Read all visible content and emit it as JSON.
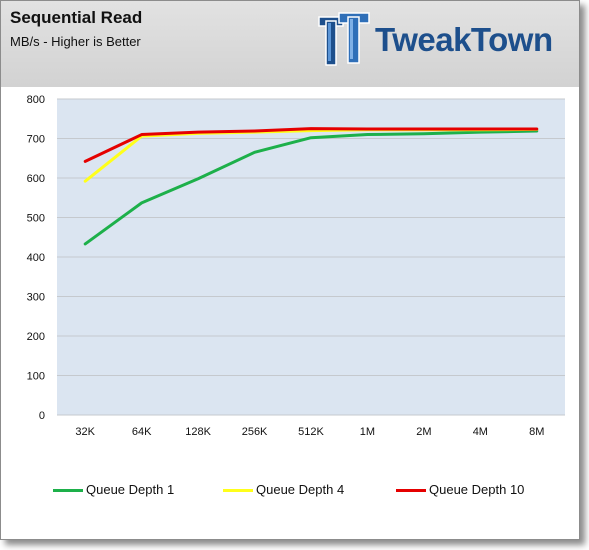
{
  "header": {
    "title": "Sequential Read",
    "subtitle": "MB/s - Higher is Better",
    "logo_text": "TweakTown"
  },
  "colors": {
    "plot_bg": "#dbe5f1",
    "grid": "#c5c9ce",
    "queue_depth_1": "#1db04a",
    "queue_depth_4": "#ffff1a",
    "queue_depth_10": "#e50000",
    "logo_blue": "#1d4f8c"
  },
  "chart_data": {
    "type": "line",
    "title": "Sequential Read",
    "subtitle": "MB/s - Higher is Better",
    "xlabel": "",
    "ylabel": "",
    "categories": [
      "32K",
      "64K",
      "128K",
      "256K",
      "512K",
      "1M",
      "2M",
      "4M",
      "8M"
    ],
    "ylim": [
      0,
      800
    ],
    "yticks": [
      0,
      100,
      200,
      300,
      400,
      500,
      600,
      700,
      800
    ],
    "grid": true,
    "legend_position": "bottom",
    "series": [
      {
        "name": "Queue Depth 1",
        "color": "#1db04a",
        "values": [
          433,
          537,
          598,
          665,
          702,
          710,
          712,
          716,
          719
        ]
      },
      {
        "name": "Queue Depth 4",
        "color": "#ffff1a",
        "values": [
          592,
          706,
          713,
          716,
          720,
          722,
          722,
          722,
          723
        ]
      },
      {
        "name": "Queue Depth 10",
        "color": "#e50000",
        "values": [
          642,
          710,
          716,
          719,
          725,
          724,
          724,
          724,
          724
        ]
      }
    ]
  }
}
